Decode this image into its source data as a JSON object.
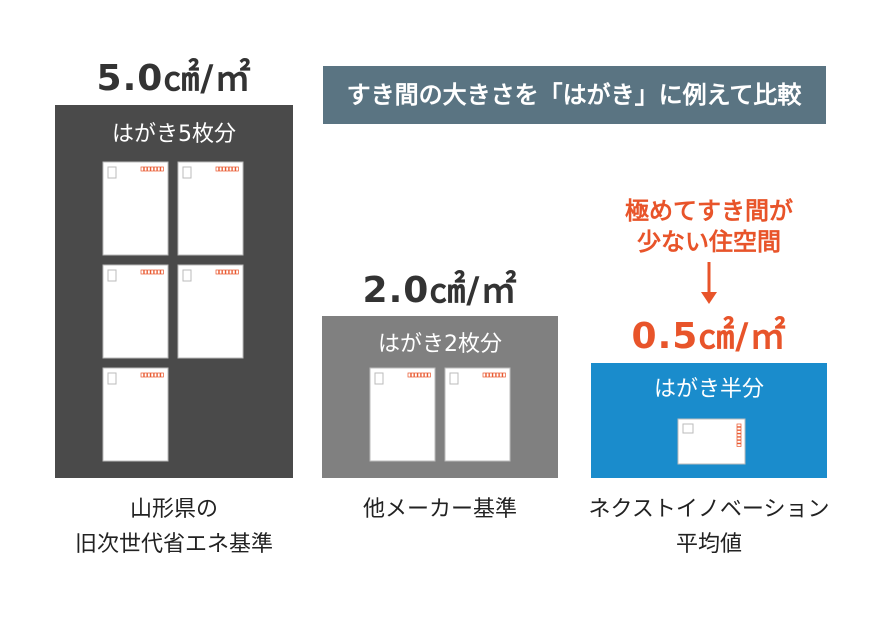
{
  "banner": "すき間の大きさを「はがき」に例えて比較",
  "panels": [
    {
      "value": "5.0㎠/㎡",
      "label": "はがき5枚分",
      "caption": [
        "山形県の",
        "旧次世代省エネ基準"
      ]
    },
    {
      "value": "2.0㎠/㎡",
      "label": "はがき2枚分",
      "caption": [
        "他メーカー基準"
      ]
    },
    {
      "value": "0.5㎠/㎡",
      "label": "はがき半分",
      "caption": [
        "ネクストイノベーション",
        "平均値"
      ]
    }
  ],
  "note": [
    "極めてすき間が",
    "少ない住空間"
  ]
}
